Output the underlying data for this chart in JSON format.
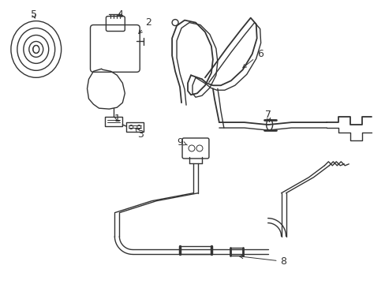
{
  "background_color": "#ffffff",
  "line_color": "#333333",
  "line_width": 1.0,
  "fig_width": 4.89,
  "fig_height": 3.6,
  "dpi": 100
}
